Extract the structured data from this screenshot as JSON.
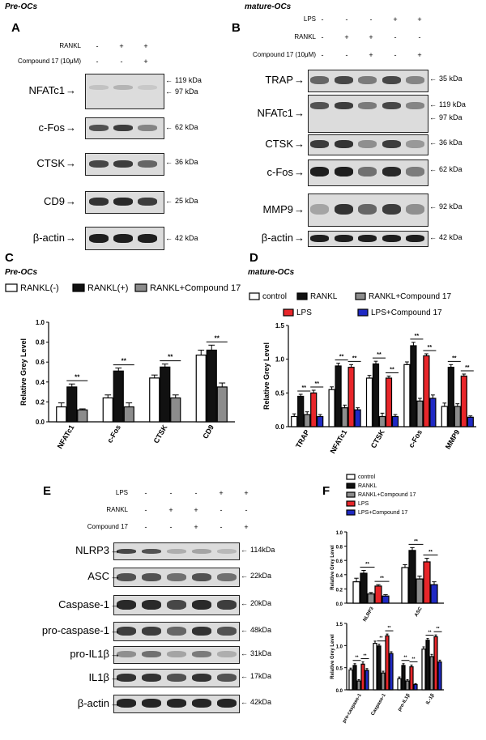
{
  "panels": {
    "A": {
      "letter": "A",
      "header": "Pre-OCs",
      "conditions": [
        {
          "name": "RANKL",
          "signs": [
            "-",
            "+",
            "+"
          ]
        },
        {
          "name": "Compound 17 (10μM)",
          "signs": [
            "-",
            "-",
            "+"
          ]
        }
      ],
      "blots": [
        {
          "protein": "NFATc1",
          "kda": [
            "119 kDa",
            "97 kDa"
          ],
          "intensity": [
            0.15,
            0.22,
            0.12
          ]
        },
        {
          "protein": "c-Fos",
          "kda": [
            "62 kDa"
          ],
          "intensity": [
            0.7,
            0.8,
            0.45
          ]
        },
        {
          "protein": "CTSK",
          "kda": [
            "36 kDa"
          ],
          "intensity": [
            0.75,
            0.8,
            0.6
          ]
        },
        {
          "protein": "CD9",
          "kda": [
            "25 kDa"
          ],
          "intensity": [
            0.85,
            0.9,
            0.8
          ]
        },
        {
          "protein": "β-actin",
          "kda": [
            "42 kDa"
          ],
          "intensity": [
            0.95,
            0.95,
            0.95
          ]
        }
      ]
    },
    "B": {
      "letter": "B",
      "header": "mature-OCs",
      "conditions": [
        {
          "name": "LPS",
          "signs": [
            "-",
            "-",
            "-",
            "+",
            "+"
          ]
        },
        {
          "name": "RANKL",
          "signs": [
            "-",
            "+",
            "+",
            "-",
            "-"
          ]
        },
        {
          "name": "Compound  17 (10μM)",
          "signs": [
            "-",
            "-",
            "+",
            "-",
            "+"
          ]
        }
      ],
      "blots": [
        {
          "protein": "TRAP",
          "kda": [
            "35 kDa"
          ],
          "intensity": [
            0.6,
            0.75,
            0.5,
            0.75,
            0.45
          ]
        },
        {
          "protein": "NFATc1",
          "kda": [
            "119 kDa",
            "97 kDa"
          ],
          "intensity": [
            0.7,
            0.8,
            0.5,
            0.75,
            0.45
          ]
        },
        {
          "protein": "CTSK",
          "kda": [
            "36 kDa"
          ],
          "intensity": [
            0.8,
            0.85,
            0.4,
            0.8,
            0.35
          ]
        },
        {
          "protein": "c-Fos",
          "kda": [
            "62 kDa"
          ],
          "intensity": [
            0.95,
            0.95,
            0.55,
            0.9,
            0.5
          ]
        },
        {
          "protein": "MMP9",
          "kda": [
            "92 kDa"
          ],
          "intensity": [
            0.3,
            0.85,
            0.6,
            0.8,
            0.4
          ]
        },
        {
          "protein": "β-actin",
          "kda": [
            "42 kDa"
          ],
          "intensity": [
            0.95,
            0.95,
            0.95,
            0.95,
            0.95
          ]
        }
      ]
    },
    "C": {
      "letter": "C",
      "header": "Pre-OCs"
    },
    "D": {
      "letter": "D",
      "header": "mature-OCs"
    },
    "E": {
      "letter": "E",
      "conditions": [
        {
          "name": "LPS",
          "signs": [
            "-",
            "-",
            "-",
            "+",
            "+"
          ]
        },
        {
          "name": "RANKL",
          "signs": [
            "-",
            "+",
            "+",
            "-",
            "-"
          ]
        },
        {
          "name": "Compound  17",
          "signs": [
            "-",
            "-",
            "+",
            "-",
            "+"
          ]
        }
      ],
      "blots": [
        {
          "protein": "NLRP3",
          "kda": [
            "114kDa"
          ],
          "intensity": [
            0.75,
            0.7,
            0.25,
            0.3,
            0.2
          ]
        },
        {
          "protein": "ASC",
          "kda": [
            "22kDa"
          ],
          "intensity": [
            0.7,
            0.7,
            0.55,
            0.7,
            0.55
          ]
        },
        {
          "protein": "Caspase-1",
          "kda": [
            "20kDa"
          ],
          "intensity": [
            0.9,
            0.9,
            0.75,
            0.9,
            0.8
          ]
        },
        {
          "protein": "pro-caspase-1",
          "kda": [
            "48kDa"
          ],
          "intensity": [
            0.8,
            0.8,
            0.6,
            0.85,
            0.7
          ]
        },
        {
          "protein": "pro-IL1β",
          "kda": [
            "31kDa"
          ],
          "intensity": [
            0.4,
            0.55,
            0.3,
            0.5,
            0.25
          ]
        },
        {
          "protein": "IL1β",
          "kda": [
            "17kDa"
          ],
          "intensity": [
            0.85,
            0.85,
            0.7,
            0.85,
            0.7
          ]
        },
        {
          "protein": "β-actin",
          "kda": [
            "42kDa"
          ],
          "intensity": [
            0.92,
            0.92,
            0.92,
            0.92,
            0.92
          ]
        }
      ]
    },
    "F": {
      "letter": "F"
    }
  },
  "colors": {
    "white": "#ffffff",
    "black": "#111111",
    "grey": "#8c8c8c",
    "red": "#e8262a",
    "blue": "#1f29c4"
  },
  "chart_data": [
    {
      "id": "C",
      "type": "bar",
      "ylabel": "Relative Grey Level",
      "ylim": [
        0,
        1.0
      ],
      "yticks": [
        "0.0",
        "0.2",
        "0.4",
        "0.6",
        "0.8",
        "1.0"
      ],
      "categories": [
        "NFATc1",
        "c-Fos",
        "CTSK",
        "CD9"
      ],
      "series": [
        {
          "name": "RANKL(-)",
          "color": "white",
          "values": [
            0.15,
            0.24,
            0.44,
            0.67
          ],
          "err": [
            0.04,
            0.03,
            0.03,
            0.05
          ]
        },
        {
          "name": "RANKL(+)",
          "color": "black",
          "values": [
            0.35,
            0.51,
            0.55,
            0.72
          ],
          "err": [
            0.03,
            0.03,
            0.03,
            0.05
          ]
        },
        {
          "name": "RANKL+Compound 17",
          "color": "grey",
          "values": [
            0.12,
            0.15,
            0.24,
            0.35
          ],
          "err": [
            0.01,
            0.04,
            0.03,
            0.04
          ]
        }
      ],
      "significance": "**",
      "legend_position": "top"
    },
    {
      "id": "D",
      "type": "bar",
      "ylabel": "Relative Grey Level",
      "ylim": [
        0,
        1.5
      ],
      "yticks": [
        "0.0",
        "0.5",
        "1.0",
        "1.5"
      ],
      "categories": [
        "TRAP",
        "NFATc1",
        "CTSK",
        "c-Fos",
        "MMP9"
      ],
      "series": [
        {
          "name": "control",
          "color": "white",
          "values": [
            0.15,
            0.55,
            0.72,
            0.92,
            0.3
          ],
          "err": [
            0.04,
            0.04,
            0.04,
            0.04,
            0.05
          ]
        },
        {
          "name": "RANKL",
          "color": "black",
          "values": [
            0.45,
            0.9,
            0.93,
            1.2,
            0.88
          ],
          "err": [
            0.03,
            0.04,
            0.04,
            0.05,
            0.04
          ]
        },
        {
          "name": "RANKL+Compound 17",
          "color": "grey",
          "values": [
            0.18,
            0.28,
            0.15,
            0.38,
            0.3
          ],
          "err": [
            0.04,
            0.04,
            0.05,
            0.04,
            0.04
          ]
        },
        {
          "name": "LPS",
          "color": "red",
          "values": [
            0.5,
            0.88,
            0.72,
            1.05,
            0.75
          ],
          "err": [
            0.04,
            0.04,
            0.03,
            0.03,
            0.03
          ]
        },
        {
          "name": "LPS+Compound 17",
          "color": "blue",
          "values": [
            0.15,
            0.25,
            0.15,
            0.42,
            0.14
          ],
          "err": [
            0.03,
            0.03,
            0.03,
            0.05,
            0.02
          ]
        }
      ],
      "significance": "**",
      "legend_position": "top"
    },
    {
      "id": "F-top",
      "type": "bar",
      "ylabel": "Relative Grey Level",
      "ylim": [
        0,
        1.0
      ],
      "yticks": [
        "0.0",
        "0.2",
        "0.4",
        "0.6",
        "0.8",
        "1.0"
      ],
      "categories": [
        "NLRP3",
        "ASC"
      ],
      "series": [
        {
          "name": "control",
          "color": "white",
          "values": [
            0.3,
            0.5
          ],
          "err": [
            0.05,
            0.04
          ]
        },
        {
          "name": "RANKL",
          "color": "black",
          "values": [
            0.42,
            0.74
          ],
          "err": [
            0.04,
            0.04
          ]
        },
        {
          "name": "RANKL+Compound 17",
          "color": "grey",
          "values": [
            0.13,
            0.34
          ],
          "err": [
            0.02,
            0.04
          ]
        },
        {
          "name": "LPS",
          "color": "red",
          "values": [
            0.24,
            0.58
          ],
          "err": [
            0.02,
            0.05
          ]
        },
        {
          "name": "LPS+Compound 17",
          "color": "blue",
          "values": [
            0.1,
            0.26
          ],
          "err": [
            0.02,
            0.04
          ]
        }
      ],
      "significance": "**",
      "legend_position": "top"
    },
    {
      "id": "F-bottom",
      "type": "bar",
      "ylabel": "Relative Grey Level",
      "ylim": [
        0,
        1.5
      ],
      "yticks": [
        "0.0",
        "0.5",
        "1.0",
        "1.5"
      ],
      "categories": [
        "pro-caspase-1",
        "Caspase-1",
        "pro-IL1β",
        "IL-1β"
      ],
      "series": [
        {
          "name": "control",
          "color": "white",
          "values": [
            0.45,
            1.05,
            0.25,
            0.92
          ],
          "err": [
            0.04,
            0.05,
            0.04,
            0.05
          ]
        },
        {
          "name": "RANKL",
          "color": "black",
          "values": [
            0.55,
            0.99,
            0.55,
            1.12
          ],
          "err": [
            0.04,
            0.04,
            0.04,
            0.04
          ]
        },
        {
          "name": "RANKL+Compound 17",
          "color": "grey",
          "values": [
            0.2,
            0.38,
            0.2,
            0.75
          ],
          "err": [
            0.03,
            0.04,
            0.03,
            0.05
          ]
        },
        {
          "name": "LPS",
          "color": "red",
          "values": [
            0.58,
            1.22,
            0.52,
            1.2
          ],
          "err": [
            0.05,
            0.04,
            0.04,
            0.04
          ]
        },
        {
          "name": "LPS+Compound 17",
          "color": "blue",
          "values": [
            0.44,
            0.82,
            0.12,
            0.63
          ],
          "err": [
            0.04,
            0.04,
            0.02,
            0.04
          ]
        }
      ],
      "significance": "**"
    }
  ]
}
